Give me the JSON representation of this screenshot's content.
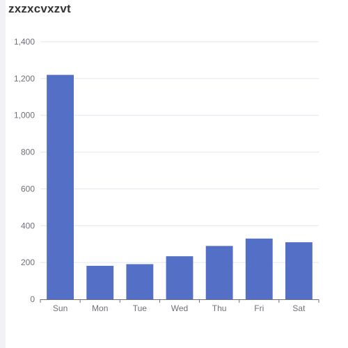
{
  "title": "zxzxcvxzvt",
  "colors": {
    "bar": "#5470c6",
    "grid": "#e0e6f1",
    "axis": "#6e7079",
    "title": "#333333"
  },
  "chart_data": {
    "type": "bar",
    "title": "zxzxcvxzvt",
    "categories": [
      "Sun",
      "Mon",
      "Tue",
      "Wed",
      "Thu",
      "Fri",
      "Sat"
    ],
    "values": [
      1220,
      182,
      191,
      234,
      290,
      330,
      310
    ],
    "xlabel": "",
    "ylabel": "",
    "ylim": [
      0,
      1400
    ],
    "yticks": [
      "0",
      "200",
      "400",
      "600",
      "800",
      "1,000",
      "1,200",
      "1,400"
    ],
    "grid": true,
    "legend": null
  }
}
